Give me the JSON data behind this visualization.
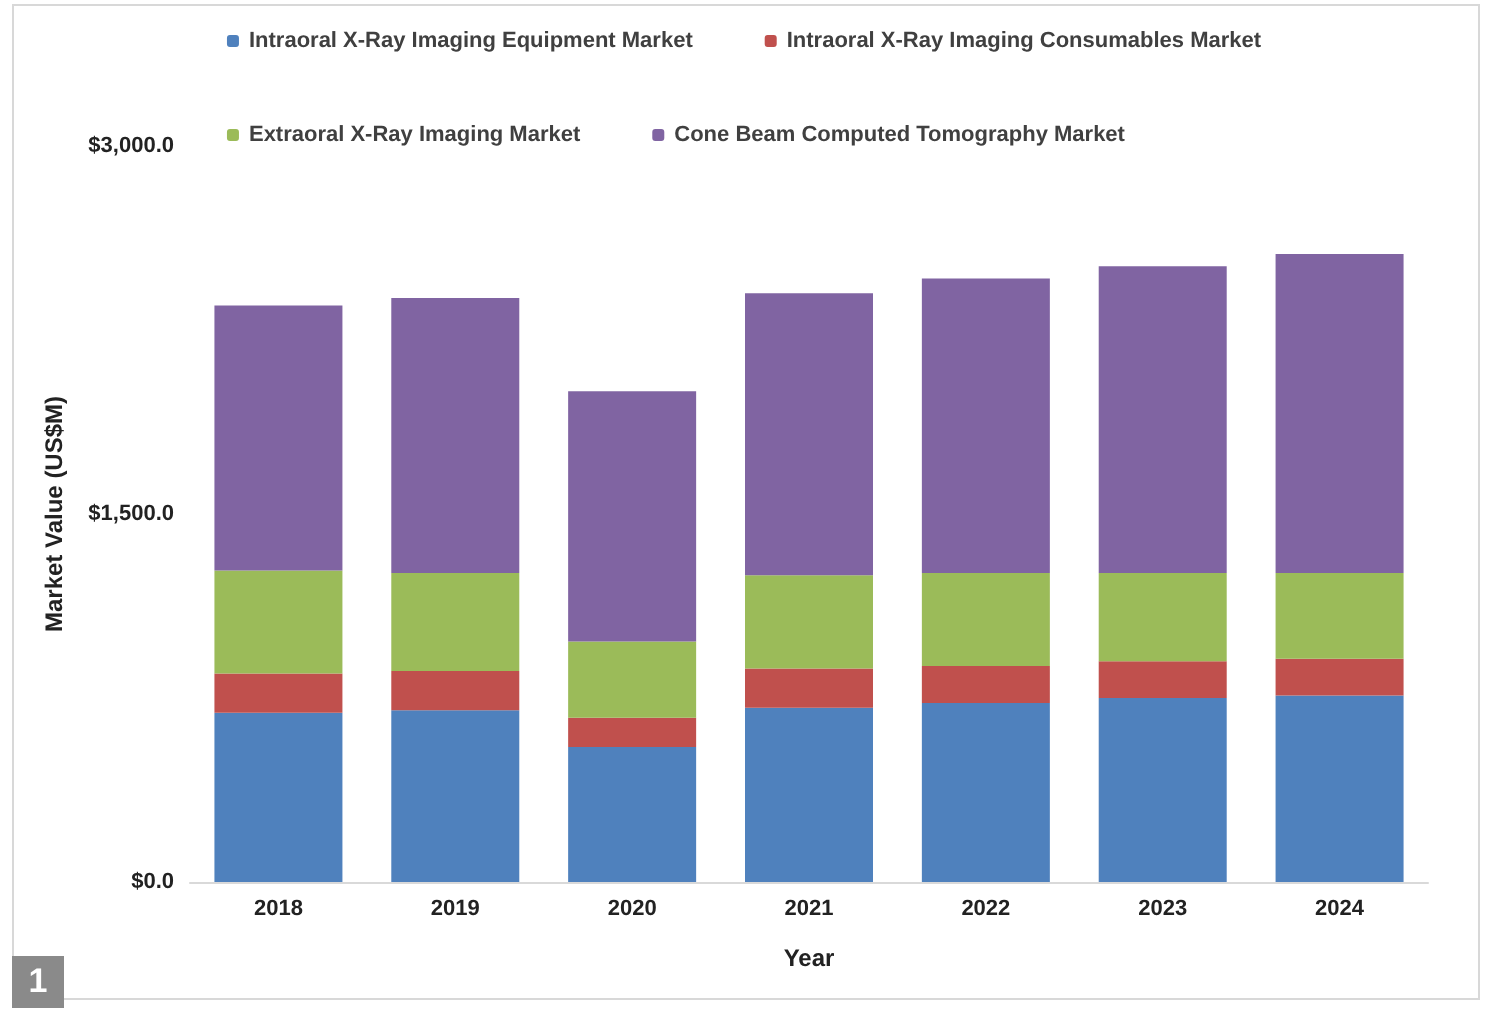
{
  "chart_data": {
    "type": "bar",
    "stacked": true,
    "xlabel": "Year",
    "ylabel": "Market Value (US$M)",
    "categories": [
      "2018",
      "2019",
      "2020",
      "2021",
      "2022",
      "2023",
      "2024"
    ],
    "series": [
      {
        "name": "Intraoral X-Ray Imaging Equipment Market",
        "color": "#4f81bd",
        "values": [
          690,
          700,
          550,
          710,
          730,
          750,
          760
        ]
      },
      {
        "name": "Intraoral X-Ray Imaging Consumables Market",
        "color": "#c0504d",
        "values": [
          160,
          160,
          120,
          160,
          150,
          150,
          150
        ]
      },
      {
        "name": "Extraoral X-Ray Imaging Market",
        "color": "#9bbb59",
        "values": [
          420,
          400,
          310,
          380,
          380,
          360,
          350
        ]
      },
      {
        "name": "Cone Beam Computed Tomography Market",
        "color": "#8064a2",
        "values": [
          1080,
          1120,
          1020,
          1150,
          1200,
          1250,
          1300
        ]
      }
    ],
    "ylim": [
      0,
      3000
    ],
    "yticks": [
      {
        "value": 0,
        "label": "$0.0"
      },
      {
        "value": 1500,
        "label": "$1,500.0"
      },
      {
        "value": 3000,
        "label": "$3,000.0"
      }
    ],
    "grid": false,
    "legend": "top",
    "annotations": [
      "1"
    ]
  }
}
